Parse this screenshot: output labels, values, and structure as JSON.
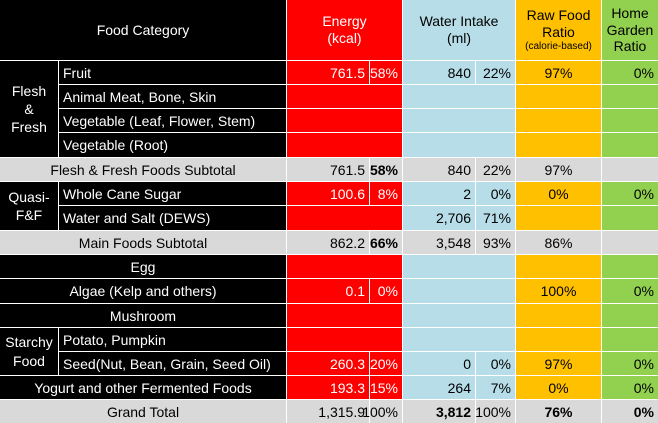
{
  "header": {
    "category": "Food Category",
    "energy_l1": "Energy",
    "energy_l2": "(kcal)",
    "water_l1": "Water Intake",
    "water_l2": "(ml)",
    "raw_l1": "Raw Food",
    "raw_l2": "Ratio",
    "raw_l3": "(calorie-based)",
    "home_l1": "Home",
    "home_l2": "Garden",
    "home_l3": "Ratio"
  },
  "groups": {
    "flesh": [
      "Flesh",
      "&",
      "Fresh"
    ],
    "quasi": [
      "Quasi-",
      "F&F"
    ],
    "starchy": [
      "Starchy",
      "Food"
    ]
  },
  "rows": {
    "fruit": {
      "name": "Fruit",
      "energy": "761.5",
      "energy_pct": "58%",
      "water": "840",
      "water_pct": "22%",
      "raw": "97%",
      "home": "0%"
    },
    "meat": {
      "name": "Animal Meat, Bone, Skin"
    },
    "veg_leaf": {
      "name": "Vegetable (Leaf, Flower, Stem)"
    },
    "veg_root": {
      "name": "Vegetable (Root)"
    },
    "flesh_sub": {
      "name": "Flesh & Fresh Foods Subtotal",
      "energy": "761.5",
      "energy_pct": "58%",
      "water": "840",
      "water_pct": "22%",
      "raw": "97%"
    },
    "sugar": {
      "name": "Whole Cane Sugar",
      "energy": "100.6",
      "energy_pct": "8%",
      "water": "2",
      "water_pct": "0%",
      "raw": "0%",
      "home": "0%"
    },
    "water_salt": {
      "name": "Water and Salt (DEWS)",
      "water": "2,706",
      "water_pct": "71%"
    },
    "main_sub": {
      "name": "Main Foods Subtotal",
      "energy": "862.2",
      "energy_pct": "66%",
      "water": "3,548",
      "water_pct": "93%",
      "raw": "86%"
    },
    "egg": {
      "name": "Egg"
    },
    "algae": {
      "name": "Algae (Kelp and others)",
      "energy": "0.1",
      "energy_pct": "0%",
      "raw": "100%",
      "home": "0%"
    },
    "mushroom": {
      "name": "Mushroom"
    },
    "potato": {
      "name": "Potato, Pumpkin"
    },
    "seed": {
      "name": "Seed(Nut, Bean, Grain, Seed Oil)",
      "energy": "260.3",
      "energy_pct": "20%",
      "water": "0",
      "water_pct": "0%",
      "raw": "97%",
      "home": "0%"
    },
    "yogurt": {
      "name": "Yogurt and other Fermented Foods",
      "energy": "193.3",
      "energy_pct": "15%",
      "water": "264",
      "water_pct": "7%",
      "raw": "0%",
      "home": "0%"
    },
    "grand": {
      "name": "Grand Total",
      "energy": "1,315.9",
      "energy_pct": "100%",
      "water": "3,812",
      "water_pct": "100%",
      "raw": "76%",
      "home": "0%"
    }
  },
  "colors": {
    "energy": "#ff0000",
    "water": "#b7dde8",
    "raw": "#ffc000",
    "home": "#92d050",
    "label": "#000000",
    "subtotal": "#d9d9d9"
  }
}
